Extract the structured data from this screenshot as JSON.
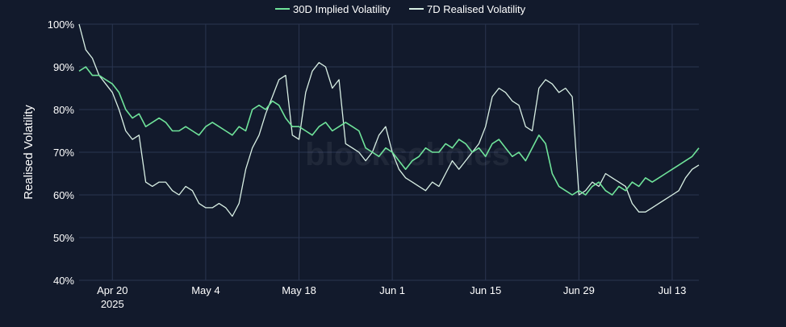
{
  "chart_data": {
    "type": "line",
    "ylabel": "Realised Volatility",
    "xlabel": "",
    "ylim": [
      40,
      100
    ],
    "yticks": [
      {
        "value": 40,
        "label": "40%"
      },
      {
        "value": 50,
        "label": "50%"
      },
      {
        "value": 60,
        "label": "60%"
      },
      {
        "value": 70,
        "label": "70%"
      },
      {
        "value": 80,
        "label": "80%"
      },
      {
        "value": 90,
        "label": "90%"
      },
      {
        "value": 100,
        "label": "100%"
      }
    ],
    "xlim": [
      "2025-04-15",
      "2025-07-17"
    ],
    "xticks": [
      {
        "date": "2025-04-20",
        "label": "Apr 20",
        "sublabel": "2025"
      },
      {
        "date": "2025-05-04",
        "label": "May 4"
      },
      {
        "date": "2025-05-18",
        "label": "May 18"
      },
      {
        "date": "2025-06-01",
        "label": "Jun 1"
      },
      {
        "date": "2025-06-15",
        "label": "Jun 15"
      },
      {
        "date": "2025-06-29",
        "label": "Jun 29"
      },
      {
        "date": "2025-07-13",
        "label": "Jul 13"
      }
    ],
    "grid": true,
    "legend_position": "top-center",
    "watermark": "blockscholes",
    "series": [
      {
        "name": "30D Implied Volatility",
        "color": "#6fe39a",
        "x": [
          "2025-04-15",
          "2025-04-16",
          "2025-04-17",
          "2025-04-18",
          "2025-04-19",
          "2025-04-20",
          "2025-04-21",
          "2025-04-22",
          "2025-04-23",
          "2025-04-24",
          "2025-04-25",
          "2025-04-26",
          "2025-04-27",
          "2025-04-28",
          "2025-04-29",
          "2025-04-30",
          "2025-05-01",
          "2025-05-02",
          "2025-05-03",
          "2025-05-04",
          "2025-05-05",
          "2025-05-06",
          "2025-05-07",
          "2025-05-08",
          "2025-05-09",
          "2025-05-10",
          "2025-05-11",
          "2025-05-12",
          "2025-05-13",
          "2025-05-14",
          "2025-05-15",
          "2025-05-16",
          "2025-05-17",
          "2025-05-18",
          "2025-05-19",
          "2025-05-20",
          "2025-05-21",
          "2025-05-22",
          "2025-05-23",
          "2025-05-24",
          "2025-05-25",
          "2025-05-26",
          "2025-05-27",
          "2025-05-28",
          "2025-05-29",
          "2025-05-30",
          "2025-05-31",
          "2025-06-01",
          "2025-06-02",
          "2025-06-03",
          "2025-06-04",
          "2025-06-05",
          "2025-06-06",
          "2025-06-07",
          "2025-06-08",
          "2025-06-09",
          "2025-06-10",
          "2025-06-11",
          "2025-06-12",
          "2025-06-13",
          "2025-06-14",
          "2025-06-15",
          "2025-06-16",
          "2025-06-17",
          "2025-06-18",
          "2025-06-19",
          "2025-06-20",
          "2025-06-21",
          "2025-06-22",
          "2025-06-23",
          "2025-06-24",
          "2025-06-25",
          "2025-06-26",
          "2025-06-27",
          "2025-06-28",
          "2025-06-29",
          "2025-06-30",
          "2025-07-01",
          "2025-07-02",
          "2025-07-03",
          "2025-07-04",
          "2025-07-05",
          "2025-07-06",
          "2025-07-07",
          "2025-07-08",
          "2025-07-09",
          "2025-07-10",
          "2025-07-11",
          "2025-07-12",
          "2025-07-13",
          "2025-07-14",
          "2025-07-15",
          "2025-07-16",
          "2025-07-17"
        ],
        "values": [
          89,
          90,
          88,
          88,
          87,
          86,
          84,
          80,
          78,
          79,
          76,
          77,
          78,
          77,
          75,
          75,
          76,
          75,
          74,
          76,
          77,
          76,
          75,
          74,
          76,
          75,
          80,
          81,
          80,
          82,
          81,
          78,
          76,
          76,
          75,
          74,
          76,
          77,
          75,
          76,
          77,
          76,
          75,
          71,
          70,
          69,
          71,
          70,
          68,
          66,
          68,
          69,
          71,
          70,
          70,
          72,
          71,
          73,
          72,
          70,
          71,
          69,
          72,
          73,
          71,
          69,
          70,
          68,
          71,
          74,
          72,
          65,
          62,
          61,
          60,
          61,
          60,
          62,
          63,
          61,
          60,
          62,
          61,
          63,
          62,
          64,
          63,
          64,
          65,
          66,
          67,
          68,
          69,
          71
        ]
      },
      {
        "name": "7D Realised Volatility",
        "color": "#d8efe4",
        "x": [
          "2025-04-15",
          "2025-04-16",
          "2025-04-17",
          "2025-04-18",
          "2025-04-19",
          "2025-04-20",
          "2025-04-21",
          "2025-04-22",
          "2025-04-23",
          "2025-04-24",
          "2025-04-25",
          "2025-04-26",
          "2025-04-27",
          "2025-04-28",
          "2025-04-29",
          "2025-04-30",
          "2025-05-01",
          "2025-05-02",
          "2025-05-03",
          "2025-05-04",
          "2025-05-05",
          "2025-05-06",
          "2025-05-07",
          "2025-05-08",
          "2025-05-09",
          "2025-05-10",
          "2025-05-11",
          "2025-05-12",
          "2025-05-13",
          "2025-05-14",
          "2025-05-15",
          "2025-05-16",
          "2025-05-17",
          "2025-05-18",
          "2025-05-19",
          "2025-05-20",
          "2025-05-21",
          "2025-05-22",
          "2025-05-23",
          "2025-05-24",
          "2025-05-25",
          "2025-05-26",
          "2025-05-27",
          "2025-05-28",
          "2025-05-29",
          "2025-05-30",
          "2025-05-31",
          "2025-06-01",
          "2025-06-02",
          "2025-06-03",
          "2025-06-04",
          "2025-06-05",
          "2025-06-06",
          "2025-06-07",
          "2025-06-08",
          "2025-06-09",
          "2025-06-10",
          "2025-06-11",
          "2025-06-12",
          "2025-06-13",
          "2025-06-14",
          "2025-06-15",
          "2025-06-16",
          "2025-06-17",
          "2025-06-18",
          "2025-06-19",
          "2025-06-20",
          "2025-06-21",
          "2025-06-22",
          "2025-06-23",
          "2025-06-24",
          "2025-06-25",
          "2025-06-26",
          "2025-06-27",
          "2025-06-28",
          "2025-06-29",
          "2025-06-30",
          "2025-07-01",
          "2025-07-02",
          "2025-07-03",
          "2025-07-04",
          "2025-07-05",
          "2025-07-06",
          "2025-07-07",
          "2025-07-08",
          "2025-07-09",
          "2025-07-10",
          "2025-07-11",
          "2025-07-12",
          "2025-07-13",
          "2025-07-14",
          "2025-07-15",
          "2025-07-16",
          "2025-07-17"
        ],
        "values": [
          100,
          94,
          92,
          88,
          86,
          84,
          80,
          75,
          73,
          74,
          63,
          62,
          63,
          63,
          61,
          60,
          62,
          61,
          58,
          57,
          57,
          58,
          57,
          55,
          58,
          66,
          71,
          74,
          79,
          83,
          87,
          88,
          74,
          73,
          84,
          89,
          91,
          90,
          85,
          87,
          72,
          71,
          70,
          68,
          70,
          74,
          76,
          70,
          66,
          64,
          63,
          62,
          61,
          63,
          62,
          65,
          68,
          66,
          68,
          70,
          72,
          76,
          83,
          85,
          84,
          82,
          81,
          76,
          75,
          85,
          87,
          86,
          84,
          85,
          83,
          60,
          61,
          63,
          62,
          65,
          64,
          63,
          62,
          58,
          56,
          56,
          57,
          58,
          59,
          60,
          61,
          64,
          66,
          67
        ]
      }
    ]
  }
}
